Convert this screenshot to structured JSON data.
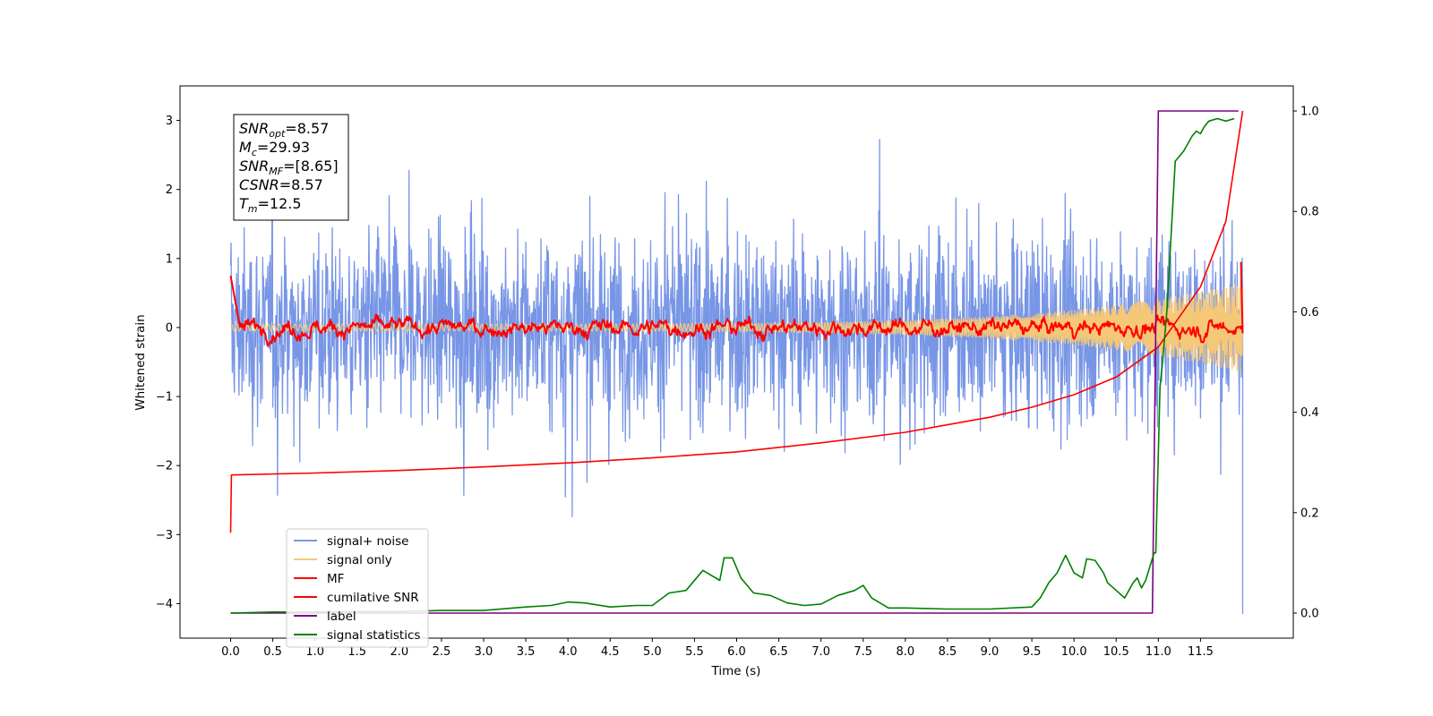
{
  "chart_data": {
    "type": "line",
    "xlabel": "Time (s)",
    "ylabel": "Whitened strain",
    "xlim": [
      -0.6,
      12.6
    ],
    "ylim": [
      -4.5,
      3.5
    ],
    "y2lim": [
      -0.05,
      1.05
    ],
    "x_ticks": [
      0.0,
      0.5,
      1.0,
      1.5,
      2.0,
      2.5,
      3.0,
      3.5,
      4.0,
      4.5,
      5.0,
      5.5,
      6.0,
      6.5,
      7.0,
      7.5,
      8.0,
      8.5,
      9.0,
      9.5,
      10.0,
      10.5,
      11.0,
      11.5
    ],
    "y_ticks": [
      -4,
      -3,
      -2,
      -1,
      0,
      1,
      2,
      3
    ],
    "y2_ticks": [
      0.0,
      0.2,
      0.4,
      0.6,
      0.8,
      1.0
    ],
    "legend_position": "lower-left",
    "annotation": [
      {
        "base": "SNR",
        "sub": "opt",
        "value": "=8.57"
      },
      {
        "base": "M",
        "sub": "c",
        "value": "=29.93"
      },
      {
        "base": "SNR",
        "sub": "MF",
        "value": "=[8.65]"
      },
      {
        "base": "CSNR",
        "sub": "",
        "value": "=8.57"
      },
      {
        "base": "T",
        "sub": "m",
        "value": "=12.5"
      }
    ],
    "series": [
      {
        "name": "signal+ noise",
        "color": "#7896e6",
        "axis": "left",
        "kind": "noise",
        "x_range": [
          0.0,
          12.0
        ],
        "amplitude": 1.0
      },
      {
        "name": "signal only",
        "color": "#f5c878",
        "axis": "left",
        "kind": "chirp",
        "x_range": [
          0.0,
          12.0
        ],
        "amplitude_end": 0.6
      },
      {
        "name": "MF",
        "color": "#ff0000",
        "axis": "left",
        "kind": "smooth-noise",
        "x_range": [
          0.0,
          12.0
        ],
        "mean": 0.0,
        "amplitude": 0.1
      },
      {
        "name": "cumilative SNR",
        "color": "#ff0000",
        "axis": "right",
        "x": [
          0.0,
          0.01,
          1.0,
          2.0,
          3.0,
          4.0,
          5.0,
          6.0,
          7.0,
          8.0,
          9.0,
          9.5,
          10.0,
          10.5,
          11.0,
          11.5,
          11.8,
          12.0
        ],
        "y": [
          0.16,
          0.275,
          0.279,
          0.284,
          0.291,
          0.299,
          0.309,
          0.321,
          0.339,
          0.36,
          0.39,
          0.41,
          0.435,
          0.47,
          0.53,
          0.65,
          0.78,
          1.0
        ]
      },
      {
        "name": "label",
        "color": "#800080",
        "axis": "right",
        "x": [
          0.0,
          10.93,
          11.0,
          11.0,
          11.95
        ],
        "y": [
          0.0,
          0.0,
          1.0,
          1.0,
          1.0
        ]
      },
      {
        "name": "signal statistics",
        "color": "#008000",
        "axis": "right",
        "x": [
          0.0,
          0.5,
          1.0,
          1.5,
          2.0,
          2.5,
          3.0,
          3.5,
          3.8,
          4.0,
          4.2,
          4.5,
          4.8,
          5.0,
          5.2,
          5.4,
          5.6,
          5.8,
          5.85,
          5.95,
          6.05,
          6.2,
          6.4,
          6.6,
          6.8,
          7.0,
          7.2,
          7.4,
          7.5,
          7.6,
          7.8,
          8.0,
          8.5,
          9.0,
          9.5,
          9.6,
          9.7,
          9.8,
          9.9,
          10.0,
          10.1,
          10.15,
          10.25,
          10.35,
          10.4,
          10.5,
          10.6,
          10.7,
          10.75,
          10.8,
          10.85,
          10.95,
          10.97,
          11.02,
          11.05,
          11.1,
          11.15,
          11.2,
          11.25,
          11.3,
          11.35,
          11.4,
          11.45,
          11.5,
          11.55,
          11.6,
          11.7,
          11.8,
          11.9
        ],
        "y": [
          0.0,
          0.002,
          0.002,
          0.003,
          0.003,
          0.005,
          0.005,
          0.012,
          0.015,
          0.022,
          0.02,
          0.012,
          0.015,
          0.015,
          0.04,
          0.045,
          0.085,
          0.065,
          0.11,
          0.11,
          0.07,
          0.04,
          0.035,
          0.02,
          0.015,
          0.018,
          0.035,
          0.045,
          0.055,
          0.03,
          0.01,
          0.01,
          0.008,
          0.008,
          0.012,
          0.03,
          0.06,
          0.08,
          0.115,
          0.08,
          0.07,
          0.108,
          0.105,
          0.08,
          0.06,
          0.045,
          0.03,
          0.06,
          0.07,
          0.05,
          0.065,
          0.12,
          0.12,
          0.45,
          0.5,
          0.6,
          0.75,
          0.9,
          0.91,
          0.92,
          0.935,
          0.95,
          0.96,
          0.955,
          0.97,
          0.98,
          0.985,
          0.98,
          0.985
        ]
      }
    ]
  }
}
